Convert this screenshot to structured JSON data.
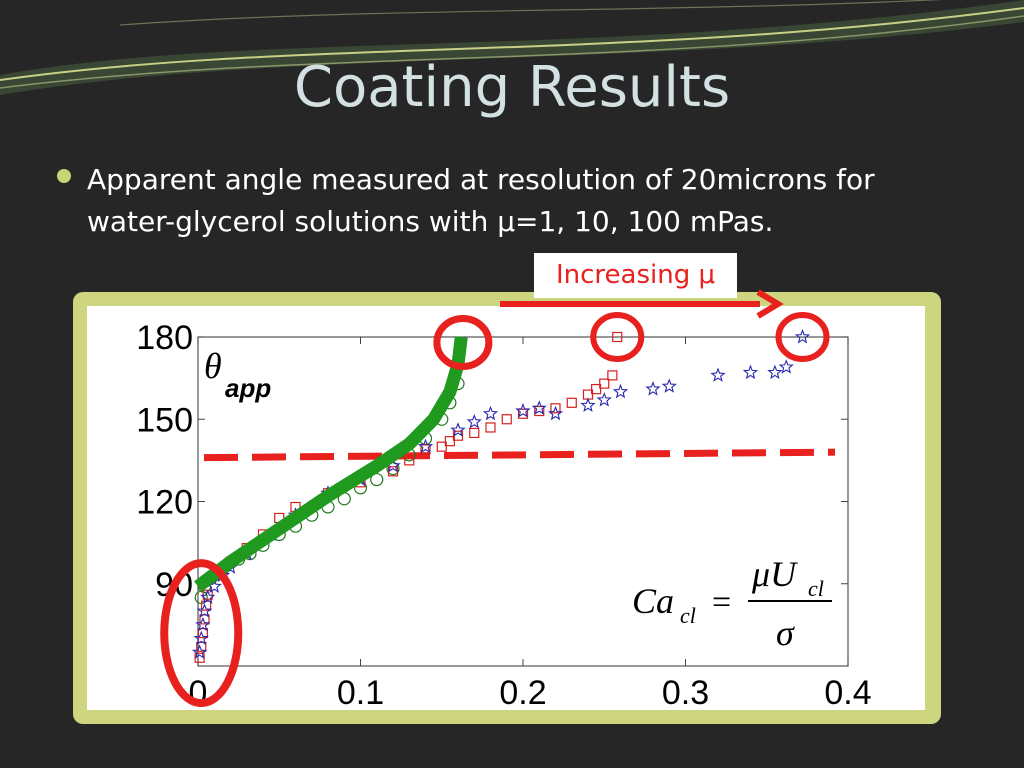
{
  "slide": {
    "title": "Coating Results",
    "bullet": "Apparent angle measured at resolution of 20microns for water-glycerol solutions with  μ=1, 10, 100 mPas.",
    "annotation": "Increasing μ",
    "colors": {
      "background": "#262626",
      "title": "#d3e1e3",
      "frame": "#cdd67f",
      "accent_red": "#e8201e",
      "fit_green": "#1f9a1f"
    }
  },
  "chart_data": {
    "type": "scatter",
    "xlim": [
      0,
      0.4
    ],
    "ylim": [
      60,
      180
    ],
    "x_ticks": [
      "0",
      "0.1",
      "0.2",
      "0.3",
      "0.4"
    ],
    "y_ticks": [
      "90",
      "120",
      "150",
      "180"
    ],
    "ylabel_symbol": "θ",
    "ylabel_subscript": "app",
    "formula": {
      "lhs": "Ca",
      "lhs_sub": "cl",
      "equals": "=",
      "num": "μU",
      "num_sub": "cl",
      "den": "σ"
    },
    "threshold_line": {
      "y_start": 136,
      "y_end": 138,
      "style": "dashed",
      "color": "#e8201e"
    },
    "fit_curve": {
      "color": "#1f9a1f",
      "x": [
        0,
        0.02,
        0.05,
        0.08,
        0.11,
        0.13,
        0.145,
        0.155,
        0.16,
        0.162
      ],
      "y": [
        89,
        98,
        110,
        122,
        133,
        141,
        150,
        160,
        170,
        180
      ]
    },
    "circled_points": [
      {
        "x": 0.163,
        "y": 178
      },
      {
        "x": 0.258,
        "y": 180
      },
      {
        "x": 0.372,
        "y": 180
      },
      {
        "x": 0.002,
        "y": 72
      }
    ],
    "series": [
      {
        "marker": "circle",
        "color": "#1f7a1f",
        "x": [
          0.002,
          0.004,
          0.008,
          0.012,
          0.018,
          0.025,
          0.032,
          0.04,
          0.05,
          0.06,
          0.07,
          0.08,
          0.09,
          0.1,
          0.11,
          0.12,
          0.13,
          0.14,
          0.15,
          0.155,
          0.16
        ],
        "y": [
          85,
          89,
          92,
          94,
          97,
          99,
          101,
          104,
          108,
          111,
          115,
          118,
          121,
          125,
          128,
          132,
          137,
          143,
          150,
          156,
          163
        ]
      },
      {
        "marker": "square",
        "color": "#d42020",
        "x": [
          0.001,
          0.002,
          0.003,
          0.004,
          0.005,
          0.006,
          0.01,
          0.02,
          0.03,
          0.04,
          0.05,
          0.06,
          0.08,
          0.1,
          0.12,
          0.13,
          0.14,
          0.15,
          0.155,
          0.16,
          0.17,
          0.18,
          0.19,
          0.2,
          0.21,
          0.22,
          0.23,
          0.24,
          0.245,
          0.25,
          0.255,
          0.258
        ],
        "y": [
          63,
          67,
          72,
          77,
          82,
          86,
          93,
          98,
          103,
          108,
          114,
          118,
          123,
          127,
          131,
          135,
          139,
          140,
          142,
          144,
          145,
          147,
          150,
          152,
          153,
          154,
          156,
          159,
          161,
          163,
          166,
          180
        ]
      },
      {
        "marker": "star",
        "color": "#2828b0",
        "x": [
          0.001,
          0.002,
          0.003,
          0.004,
          0.006,
          0.01,
          0.015,
          0.02,
          0.03,
          0.045,
          0.06,
          0.08,
          0.1,
          0.12,
          0.14,
          0.16,
          0.17,
          0.18,
          0.2,
          0.21,
          0.22,
          0.24,
          0.25,
          0.26,
          0.28,
          0.29,
          0.32,
          0.34,
          0.355,
          0.362,
          0.372
        ],
        "y": [
          65,
          70,
          75,
          80,
          85,
          89,
          93,
          96,
          101,
          108,
          115,
          123,
          128,
          133,
          140,
          146,
          149,
          152,
          153,
          154,
          152,
          155,
          157,
          160,
          161,
          162,
          166,
          167,
          167,
          169,
          180
        ]
      }
    ]
  }
}
